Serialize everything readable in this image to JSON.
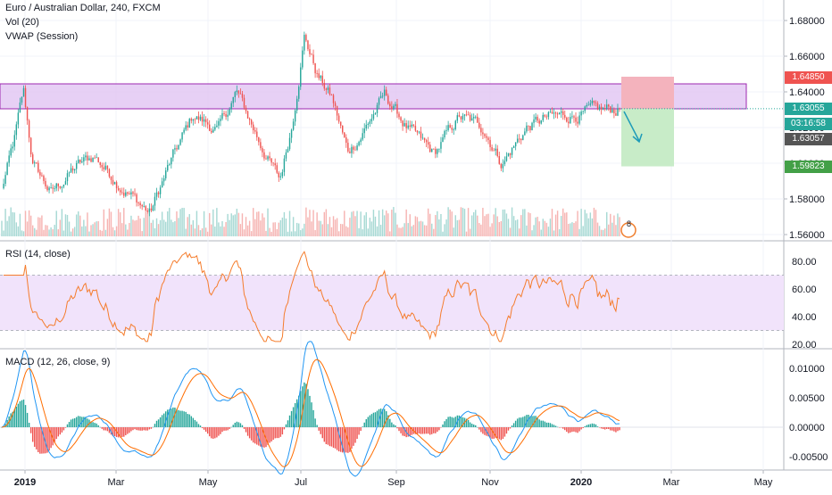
{
  "legend": {
    "symbol": "Euro / Australian Dollar, 240, FXCM",
    "vol": "Vol (20)",
    "vwap": "VWAP (Session)"
  },
  "panes": {
    "rsi_label": "RSI (14, close)",
    "macd_label": "MACD (12, 26, close, 9)"
  },
  "price_axis": {
    "ticks": [
      "1.68000",
      "1.66000",
      "1.64000",
      "1.62000",
      "1.60000",
      "1.58000",
      "1.56000"
    ],
    "tick_values": [
      1.68,
      1.66,
      1.64,
      1.62,
      1.6,
      1.58,
      1.56
    ]
  },
  "rsi_axis": {
    "ticks": [
      "80.00",
      "60.00",
      "40.00",
      "20.00"
    ],
    "tick_values": [
      80,
      60,
      40,
      20
    ],
    "band": [
      30,
      70
    ]
  },
  "macd_axis": {
    "ticks": [
      "0.01000",
      "0.00500",
      "0.00000",
      "-0.00500"
    ],
    "tick_values": [
      0.01,
      0.005,
      0.0,
      -0.005
    ]
  },
  "time_axis": {
    "labels": [
      "2019",
      "Mar",
      "May",
      "Jul",
      "Sep",
      "Nov",
      "2020",
      "Mar",
      "May"
    ]
  },
  "price_tags": {
    "stop": "1.64850",
    "current": "1.63055",
    "countdown": "03:16:58",
    "last": "1.63057",
    "target": "1.59823"
  },
  "alert_count": "8",
  "colors": {
    "up": "#26a69a",
    "down": "#ef5350",
    "zone_fill": "#e1c4f2",
    "zone_border": "#9c27b0",
    "stop_fill": "#f4b3bd",
    "target_fill": "#c8ecc8",
    "rsi_line": "#f57c2c",
    "rsi_band": "#f1e3fb",
    "macd_line": "#2196f3",
    "signal_line": "#ff6d00",
    "stop_tag": "#ef5350",
    "current_tag": "#26a69a",
    "last_tag": "#555555",
    "target_tag": "#43a047",
    "arrow": "#1e9bb8"
  },
  "chart_data": [
    {
      "type": "candlestick",
      "title": "Euro / Australian Dollar, 240, FXCM",
      "ylim": [
        1.555,
        1.69
      ],
      "x_labels": [
        "2019",
        "Mar",
        "May",
        "Jul",
        "Sep",
        "Nov",
        "2020",
        "Mar",
        "May"
      ],
      "price_path": [
        {
          "t": 0.0,
          "p": 1.585
        },
        {
          "t": 0.02,
          "p": 1.612
        },
        {
          "t": 0.035,
          "p": 1.64
        },
        {
          "t": 0.05,
          "p": 1.6
        },
        {
          "t": 0.08,
          "p": 1.583
        },
        {
          "t": 0.12,
          "p": 1.598
        },
        {
          "t": 0.15,
          "p": 1.604
        },
        {
          "t": 0.2,
          "p": 1.585
        },
        {
          "t": 0.24,
          "p": 1.572
        },
        {
          "t": 0.27,
          "p": 1.598
        },
        {
          "t": 0.31,
          "p": 1.627
        },
        {
          "t": 0.35,
          "p": 1.618
        },
        {
          "t": 0.38,
          "p": 1.64
        },
        {
          "t": 0.42,
          "p": 1.61
        },
        {
          "t": 0.45,
          "p": 1.59
        },
        {
          "t": 0.47,
          "p": 1.622
        },
        {
          "t": 0.49,
          "p": 1.672
        },
        {
          "t": 0.51,
          "p": 1.65
        },
        {
          "t": 0.535,
          "p": 1.636
        },
        {
          "t": 0.56,
          "p": 1.606
        },
        {
          "t": 0.58,
          "p": 1.615
        },
        {
          "t": 0.62,
          "p": 1.638
        },
        {
          "t": 0.66,
          "p": 1.618
        },
        {
          "t": 0.7,
          "p": 1.605
        },
        {
          "t": 0.74,
          "p": 1.626
        },
        {
          "t": 0.78,
          "p": 1.62
        },
        {
          "t": 0.81,
          "p": 1.6
        },
        {
          "t": 0.85,
          "p": 1.62
        },
        {
          "t": 0.88,
          "p": 1.625
        },
        {
          "t": 1.0,
          "p": 1.63057
        }
      ],
      "resistance_zone": [
        1.6305,
        1.6445
      ],
      "short_position": {
        "entry": 1.63055,
        "stop": 1.6485,
        "target": 1.59823
      },
      "rsi": {
        "period": 14,
        "band": [
          30,
          70
        ],
        "ylim": [
          15,
          90
        ]
      },
      "macd": {
        "fast": 12,
        "slow": 26,
        "signal": 9,
        "ylim": [
          -0.007,
          0.0125
        ]
      }
    }
  ]
}
